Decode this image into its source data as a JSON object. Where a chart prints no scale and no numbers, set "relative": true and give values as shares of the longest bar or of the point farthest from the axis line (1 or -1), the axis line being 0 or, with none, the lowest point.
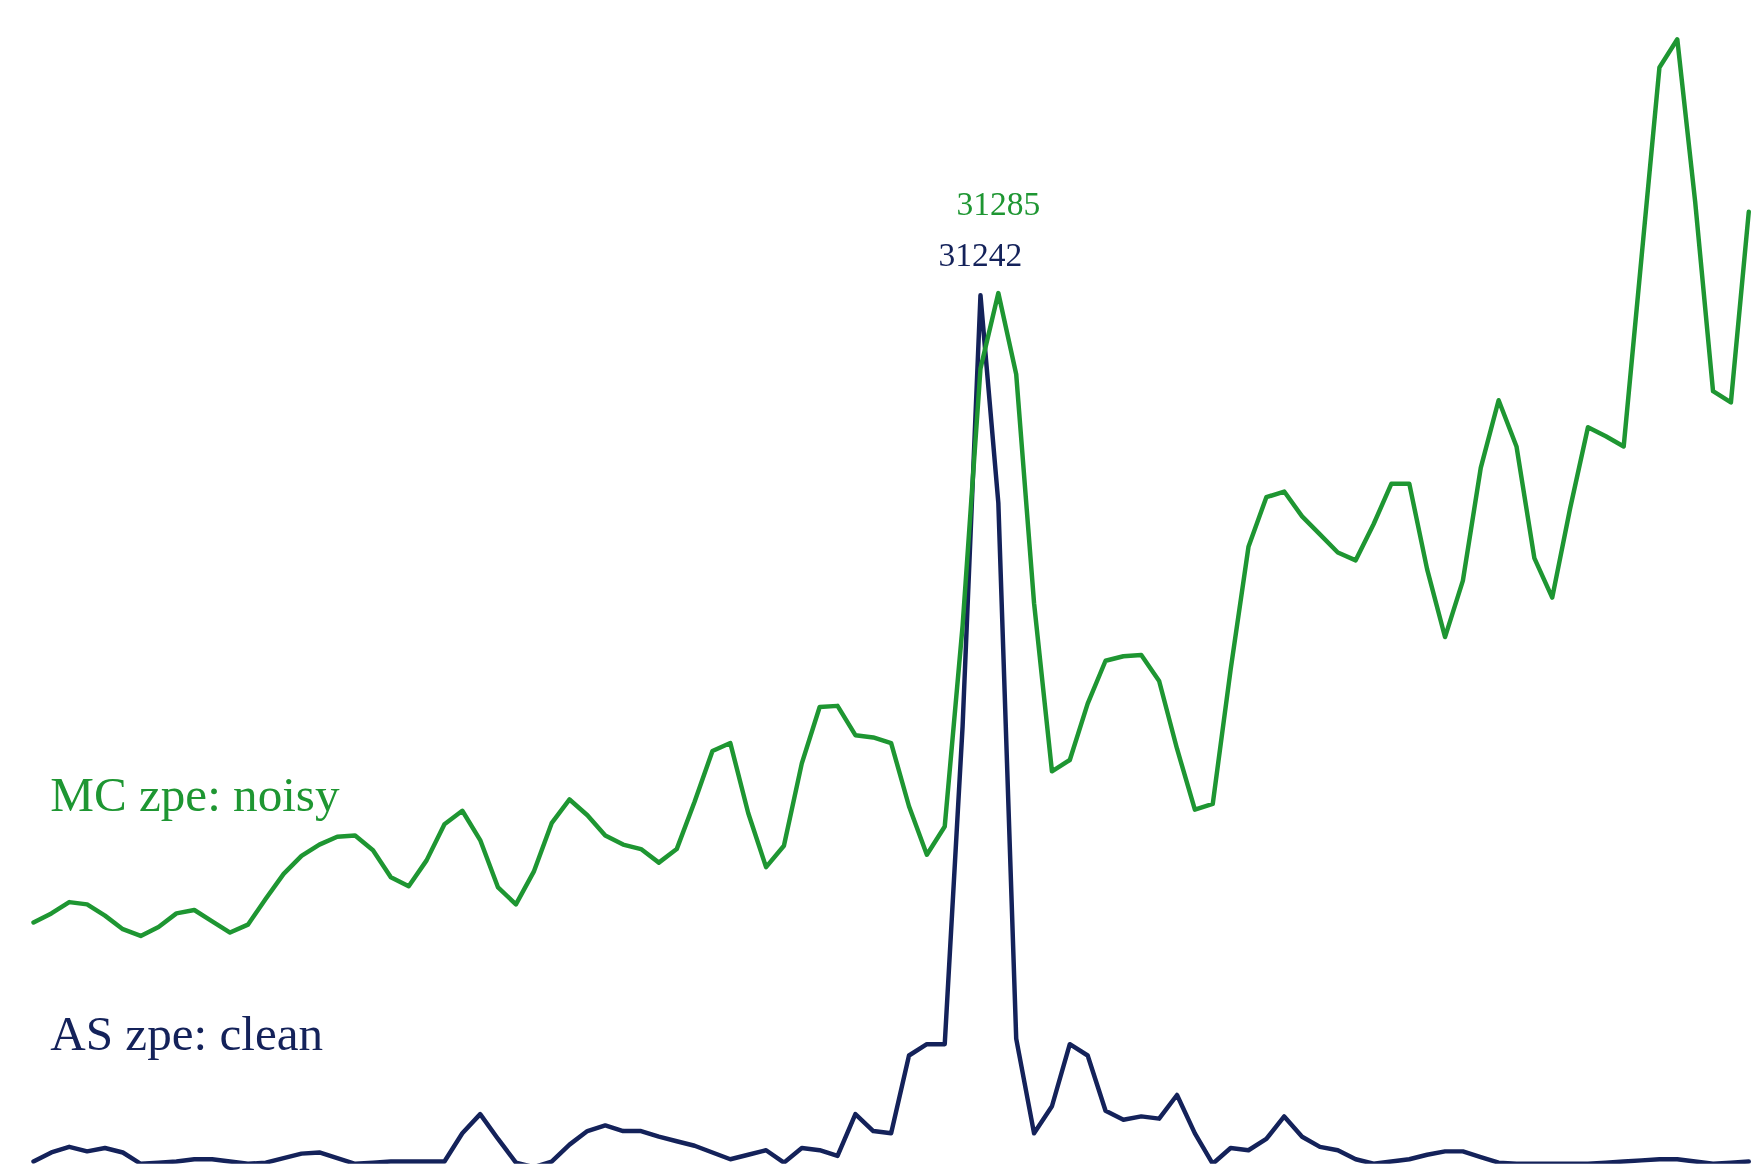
{
  "chart_data": {
    "type": "line",
    "relative": true,
    "categories": [
      null,
      null,
      null,
      null,
      null,
      null,
      null,
      null,
      null,
      null,
      null,
      null,
      null,
      null,
      null,
      null,
      null,
      null,
      null,
      null,
      null,
      null,
      null,
      null,
      null,
      null,
      null,
      null,
      null,
      null,
      null,
      null,
      null,
      null,
      null,
      null,
      null,
      null,
      null,
      null,
      null,
      null,
      null,
      null,
      null,
      null,
      null,
      null,
      null,
      null,
      null,
      null,
      null,
      null,
      null,
      null,
      null,
      null,
      null,
      null,
      null,
      null,
      null,
      null,
      null,
      null,
      null,
      null,
      null,
      null,
      null,
      null,
      null,
      null,
      null,
      null,
      null,
      null,
      null,
      null,
      null,
      null,
      null,
      null,
      null,
      null,
      null,
      null,
      null,
      null,
      null,
      null,
      null,
      null,
      null,
      null,
      null
    ],
    "series": [
      {
        "name": "AS zpe: clean",
        "color": "#14225a",
        "values": [
          0.005,
          0.013,
          0.018,
          0.014,
          0.017,
          0.013,
          0.003,
          0.004,
          0.005,
          0.007,
          0.007,
          0.005,
          0.003,
          0.004,
          0.008,
          0.012,
          0.013,
          0.008,
          0.003,
          0.004,
          0.005,
          0.005,
          0.005,
          0.005,
          0.03,
          0.047,
          0.025,
          0.004,
          0,
          0.005,
          0.02,
          0.032,
          0.037,
          0.032,
          0.032,
          0.027,
          0.023,
          0.019,
          0.013,
          0.007,
          0.011,
          0.015,
          0.004,
          0.017,
          0.015,
          0.01,
          0.047,
          0.032,
          0.03,
          0.099,
          0.109,
          0.109,
          0.391,
          0.773,
          0.589,
          0.114,
          0.03,
          0.054,
          0.109,
          0.099,
          0.05,
          0.042,
          0.045,
          0.043,
          0.064,
          0.03,
          0.003,
          0.017,
          0.015,
          0.025,
          0.045,
          0.027,
          0.018,
          0.015,
          0.007,
          0.003,
          0.005,
          0.007,
          0.011,
          0.014,
          0.014,
          0.009,
          0.004,
          0.003,
          0.003,
          0.003,
          0.003,
          0.003,
          0.004,
          0.005,
          0.006,
          0.007,
          0.007,
          0.005,
          0.003,
          0.004,
          0.005
        ]
      },
      {
        "name": "MC zpe: noisy",
        "color": "#1e9632",
        "values": [
          0.217,
          0.225,
          0.235,
          0.233,
          0.223,
          0.211,
          0.205,
          0.213,
          0.225,
          0.228,
          0.218,
          0.208,
          0.215,
          0.238,
          0.26,
          0.276,
          0.286,
          0.293,
          0.294,
          0.281,
          0.257,
          0.249,
          0.272,
          0.304,
          0.316,
          0.29,
          0.248,
          0.233,
          0.262,
          0.305,
          0.326,
          0.312,
          0.294,
          0.286,
          0.282,
          0.27,
          0.282,
          0.324,
          0.369,
          0.376,
          0.314,
          0.266,
          0.285,
          0.358,
          0.408,
          0.409,
          0.383,
          0.381,
          0.376,
          0.32,
          0.277,
          0.302,
          0.48,
          0.708,
          0.775,
          0.703,
          0.5,
          0.351,
          0.361,
          0.411,
          0.449,
          0.453,
          0.454,
          0.431,
          0.371,
          0.317,
          0.322,
          0.441,
          0.55,
          0.594,
          0.599,
          0.577,
          0.561,
          0.545,
          0.538,
          0.57,
          0.606,
          0.606,
          0.53,
          0.47,
          0.52,
          0.62,
          0.68,
          0.639,
          0.54,
          0.505,
          0.584,
          0.656,
          0.648,
          0.639,
          0.807,
          0.975,
          1,
          0.856,
          0.688,
          0.678,
          0.847
        ]
      }
    ],
    "annotations": [
      {
        "text": "31242",
        "y": 0.773
      },
      {
        "text": "31285",
        "y": 0.775
      }
    ]
  }
}
